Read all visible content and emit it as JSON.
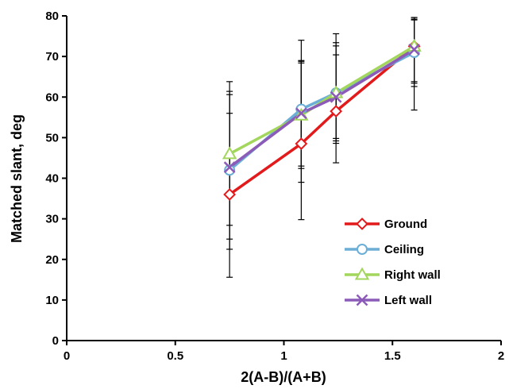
{
  "chart_data": {
    "type": "line",
    "title": "",
    "xlabel": "2(A-B)/(A+B)",
    "ylabel": "Matched slant, deg",
    "xlim": [
      0,
      2
    ],
    "ylim": [
      0,
      80
    ],
    "x_ticks": [
      "0",
      "0.5",
      "1",
      "1.5",
      "2"
    ],
    "y_ticks": [
      "0",
      "10",
      "20",
      "30",
      "40",
      "50",
      "60",
      "70",
      "80"
    ],
    "grid": false,
    "legend_position": "bottom-right",
    "series": [
      {
        "name": "Ground",
        "color": "#e31a1c",
        "marker": "diamond",
        "x": [
          0.75,
          1.08,
          1.24,
          1.6
        ],
        "y": [
          36,
          48.5,
          56.5,
          72.5
        ],
        "err_low": [
          22.5,
          29.8,
          43.8,
          56.8
        ],
        "err_high": [
          60.6,
          69,
          72.6,
          79.6
        ]
      },
      {
        "name": "Ceiling",
        "color": "#6baed6",
        "marker": "circle",
        "x": [
          0.75,
          1.08,
          1.24,
          1.6
        ],
        "y": [
          42,
          57,
          61,
          71
        ],
        "err_low": [
          15.6,
          42.4,
          48.6,
          62.6
        ],
        "err_high": [
          63.8,
          74,
          75.6,
          79.2
        ]
      },
      {
        "name": "Right wall",
        "color": "#a3d65c",
        "marker": "triangle",
        "x": [
          0.75,
          1.08,
          1.24,
          1.6
        ],
        "y": [
          46,
          55.5,
          61,
          72.5
        ],
        "err_low": [
          28.4,
          39,
          49.2,
          63.4
        ],
        "err_high": [
          61.4,
          68.8,
          73.4,
          79.6
        ]
      },
      {
        "name": "Left wall",
        "color": "#8c5bb8",
        "marker": "x",
        "x": [
          0.75,
          1.08,
          1.24,
          1.6
        ],
        "y": [
          42.7,
          56,
          60,
          71.7
        ],
        "err_low": [
          25,
          43,
          49.8,
          63.8
        ],
        "err_high": [
          56,
          68.4,
          70.4,
          79
        ]
      }
    ]
  }
}
